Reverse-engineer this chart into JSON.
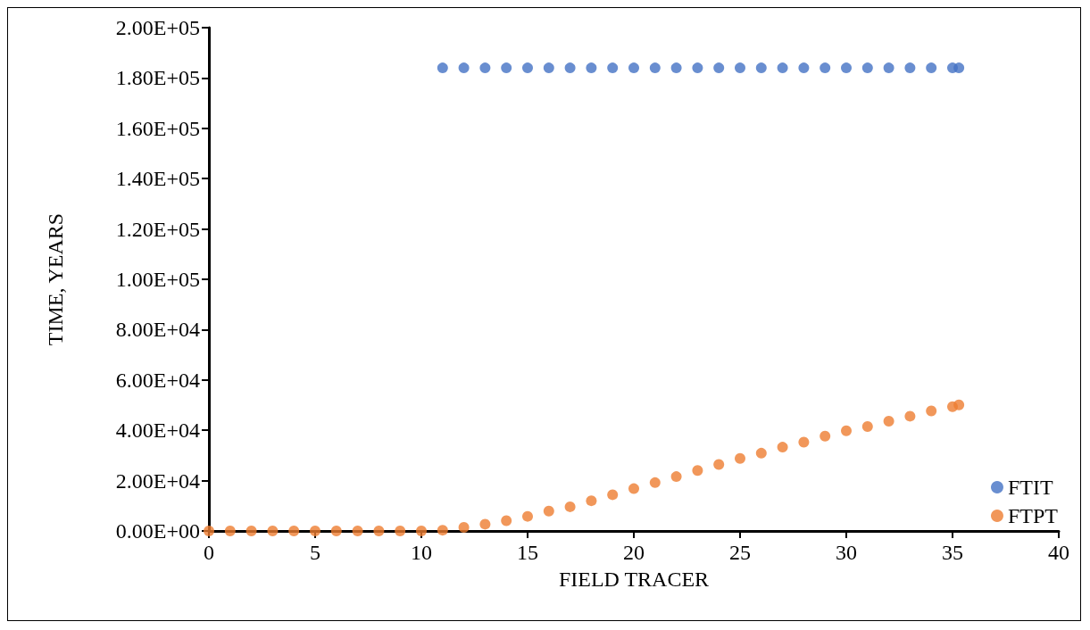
{
  "chart_data": {
    "type": "scatter",
    "xlabel": "FIELD TRACER",
    "ylabel": "TIME, YEARS",
    "xlim": [
      0,
      40
    ],
    "xticks": [
      0,
      5,
      10,
      15,
      20,
      25,
      30,
      35,
      40
    ],
    "ylim": [
      0,
      200000
    ],
    "yticks": [
      {
        "value": 0,
        "label": "0.00E+00"
      },
      {
        "value": 20000,
        "label": "2.00E+04"
      },
      {
        "value": 40000,
        "label": "4.00E+04"
      },
      {
        "value": 60000,
        "label": "6.00E+04"
      },
      {
        "value": 80000,
        "label": "8.00E+04"
      },
      {
        "value": 100000,
        "label": "1.00E+05"
      },
      {
        "value": 120000,
        "label": "1.20E+05"
      },
      {
        "value": 140000,
        "label": "1.40E+05"
      },
      {
        "value": 160000,
        "label": "1.60E+05"
      },
      {
        "value": 180000,
        "label": "1.80E+05"
      },
      {
        "value": 200000,
        "label": "2.00E+05"
      }
    ],
    "grid": false,
    "legend": "bottom right",
    "marker": "circle",
    "series": [
      {
        "name": "FTIT",
        "color": "#4472c4",
        "x": [
          11,
          12,
          13,
          14,
          15,
          16,
          17,
          18,
          19,
          20,
          21,
          22,
          23,
          24,
          25,
          26,
          27,
          28,
          29,
          30,
          31,
          32,
          33,
          34,
          35,
          35.3
        ],
        "values": [
          184000,
          184000,
          184000,
          184000,
          184000,
          184000,
          184000,
          184000,
          184000,
          184000,
          184000,
          184000,
          184000,
          184000,
          184000,
          184000,
          184000,
          184000,
          184000,
          184000,
          184000,
          184000,
          184000,
          184000,
          184000,
          184000
        ]
      },
      {
        "name": "FTPT",
        "color": "#ed7d31",
        "x": [
          0,
          1,
          2,
          3,
          4,
          5,
          6,
          7,
          8,
          9,
          10,
          11,
          12,
          13,
          14,
          15,
          16,
          17,
          18,
          19,
          20,
          21,
          22,
          23,
          24,
          25,
          26,
          27,
          28,
          29,
          30,
          31,
          32,
          33,
          34,
          35,
          35.3
        ],
        "values": [
          0,
          0,
          0,
          0,
          0,
          0,
          0,
          0,
          0,
          0,
          0,
          300,
          1400,
          2700,
          4100,
          5800,
          7900,
          9600,
          12000,
          14400,
          16800,
          19200,
          21600,
          24000,
          26400,
          28800,
          30900,
          33300,
          35300,
          37700,
          39800,
          41500,
          43600,
          45600,
          47700,
          49400,
          50100
        ]
      }
    ]
  }
}
